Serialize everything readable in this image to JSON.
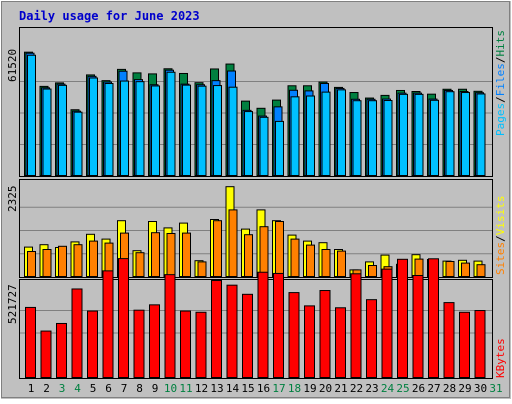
{
  "colors": {
    "background": "#C0C0C0",
    "border": "#000000",
    "title": "#0000CC",
    "hits": "#008040",
    "files": "#0080FF",
    "pages": "#00C0FF",
    "visits": "#FFFF00",
    "sites": "#FF8000",
    "kbytes": "#FF0000",
    "day_weekday": "#000000",
    "day_weekend": "#008040"
  },
  "chart_data": [
    {
      "type": "bar",
      "title": "Daily usage for June 2023",
      "ylabel_max": "61520",
      "ymax": 61520,
      "legend": [
        "Pages",
        "Files",
        "Hits"
      ],
      "legend_placement": "right",
      "categories": [
        "1",
        "2",
        "3",
        "4",
        "5",
        "6",
        "7",
        "8",
        "9",
        "10",
        "11",
        "12",
        "13",
        "14",
        "15",
        "16",
        "17",
        "18",
        "19",
        "20",
        "21",
        "22",
        "23",
        "24",
        "25",
        "26",
        "27",
        "28",
        "29",
        "30",
        "31"
      ],
      "weekend_days": [
        3,
        4,
        10,
        11,
        17,
        18,
        24,
        25,
        31
      ],
      "series": [
        {
          "name": "Hits",
          "values": [
            60700,
            44000,
            45700,
            32600,
            49600,
            46800,
            52300,
            50600,
            50100,
            52600,
            50300,
            45800,
            52500,
            54900,
            36800,
            33300,
            37300,
            44300,
            44300,
            46100,
            43500,
            41000,
            38300,
            39600,
            42000,
            41500,
            40200,
            42600,
            42600,
            41600,
            null
          ]
        },
        {
          "name": "Files",
          "values": [
            60200,
            43300,
            45100,
            31900,
            48900,
            46100,
            51400,
            47300,
            44800,
            51900,
            45100,
            44800,
            46800,
            51500,
            32300,
            29500,
            34000,
            42100,
            41800,
            45400,
            43000,
            37700,
            37700,
            37800,
            40700,
            40700,
            37800,
            42000,
            41500,
            40900,
            null
          ]
        },
        {
          "name": "Pages",
          "values": [
            59200,
            42700,
            44500,
            31400,
            48100,
            45400,
            46600,
            46300,
            44200,
            50900,
            44600,
            44100,
            44400,
            43600,
            31700,
            28900,
            26900,
            38900,
            39300,
            41200,
            42300,
            37000,
            37000,
            37100,
            40100,
            40100,
            37200,
            41400,
            41000,
            40300,
            null
          ]
        }
      ]
    },
    {
      "type": "bar",
      "ylabel_max": "2325",
      "ymax": 2325,
      "legend": [
        "Sites",
        "Visits"
      ],
      "legend_placement": "right",
      "series": [
        {
          "name": "Visits",
          "values": [
            760,
            820,
            750,
            890,
            1080,
            960,
            1420,
            670,
            1400,
            1240,
            1360,
            420,
            1450,
            2270,
            1210,
            1690,
            1420,
            1060,
            910,
            870,
            700,
            190,
            390,
            560,
            330,
            570,
            450,
            410,
            430,
            410,
            null
          ]
        },
        {
          "name": "Sites",
          "values": [
            650,
            700,
            780,
            820,
            910,
            860,
            1110,
            620,
            1120,
            1100,
            1110,
            390,
            1420,
            1690,
            1070,
            1270,
            1400,
            960,
            810,
            700,
            660,
            190,
            300,
            270,
            270,
            460,
            400,
            400,
            360,
            320,
            null
          ]
        }
      ]
    },
    {
      "type": "bar",
      "ylabel_max": "521727",
      "ymax": 521727,
      "legend": [
        "KBytes"
      ],
      "legend_placement": "right",
      "series": [
        {
          "name": "KBytes",
          "values": [
            412000,
            275000,
            319000,
            519000,
            391000,
            624000,
            695000,
            396000,
            427000,
            602000,
            391000,
            384000,
            568000,
            541000,
            488000,
            616000,
            609000,
            498000,
            421000,
            510000,
            410000,
            607000,
            457000,
            634000,
            691000,
            597000,
            694000,
            440000,
            384000,
            394000,
            null
          ]
        }
      ]
    }
  ]
}
